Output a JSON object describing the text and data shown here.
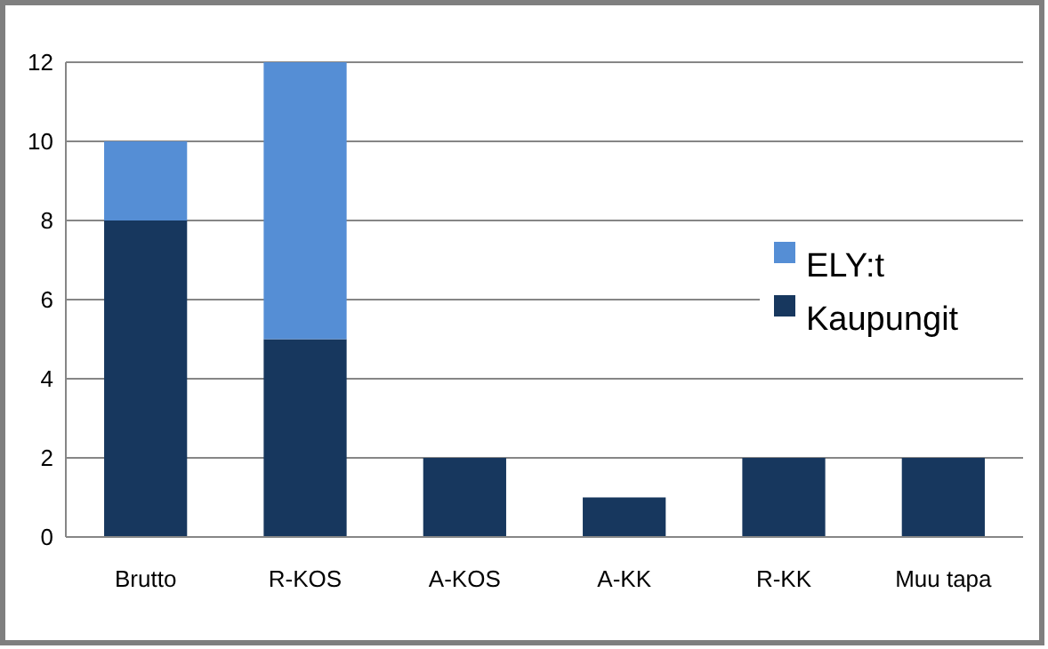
{
  "chart_data": {
    "type": "bar",
    "stacked": true,
    "categories": [
      "Brutto",
      "R-KOS",
      "A-KOS",
      "A-KK",
      "R-KK",
      "Muu tapa"
    ],
    "series": [
      {
        "name": "Kaupungit",
        "color": "#17375e",
        "values": [
          8,
          5,
          2,
          1,
          2,
          2
        ]
      },
      {
        "name": "ELY:t",
        "color": "#558ed5",
        "values": [
          2,
          7,
          null,
          null,
          null,
          null
        ]
      }
    ],
    "ylim": [
      0,
      12
    ],
    "yticks": [
      0,
      2,
      4,
      6,
      8,
      10,
      12
    ],
    "grid": "y",
    "legend": "right"
  }
}
